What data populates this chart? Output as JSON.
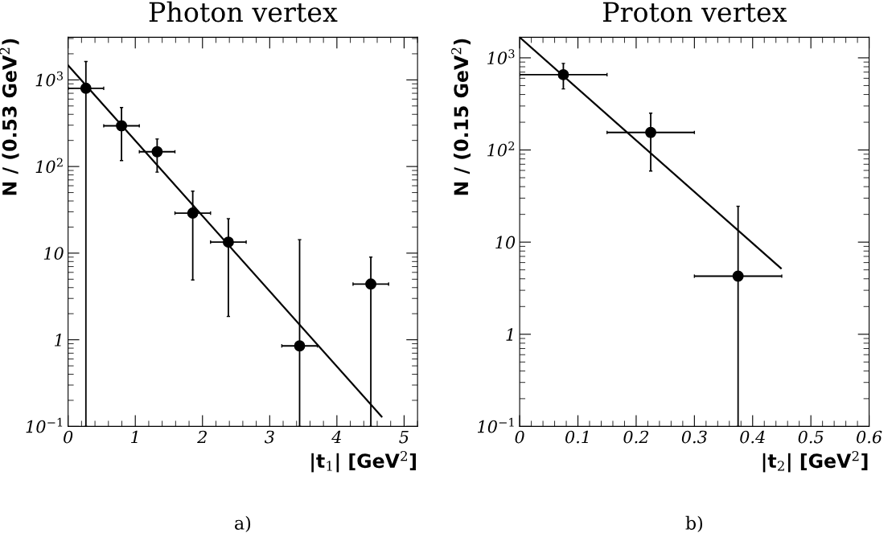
{
  "chart_data": [
    {
      "type": "scatter",
      "title": "Photon vertex",
      "xlabel": "|t$_{1}$| [GeV$^{2}$]",
      "ylabel": "N / (0.53 GeV$^{2}$)",
      "annotations": [
        "a)"
      ],
      "log": "y",
      "xlim": [
        0,
        5.2
      ],
      "xticks": [
        0,
        1,
        2,
        3,
        4,
        5
      ],
      "ylim": [
        0.1,
        3100
      ],
      "yticks": [
        {
          "value": 0.1,
          "label": "10$^{−1}$"
        },
        1,
        10,
        {
          "value": 100,
          "label": "10$^{2}$"
        },
        {
          "value": 1000,
          "label": "10$^{3}$"
        }
      ],
      "grid": false,
      "legend": false,
      "series": [
        {
          "color": "#000000",
          "marker": "circle",
          "x": [
            0.265,
            0.795,
            1.325,
            1.855,
            2.385,
            3.445,
            4.505
          ],
          "values": [
            800,
            295,
            148,
            29,
            13.4,
            0.85,
            4.4
          ],
          "errors": [
            [
              0.1,
              1630
            ],
            [
              117,
              480
            ],
            [
              86,
              208
            ],
            [
              4.9,
              52
            ],
            [
              1.86,
              25
            ],
            [
              0.1,
              14.3
            ],
            [
              0.1,
              9.0
            ]
          ],
          "xerrors": [
            0.265,
            0.265,
            0.265,
            0.265,
            0.265,
            0.265,
            0.265
          ]
        },
        {
          "type": "line",
          "color": "#000000",
          "line_style": "solid",
          "x": [
            0,
            4.665
          ],
          "values": [
            1470,
            0.13
          ]
        }
      ]
    },
    {
      "type": "scatter",
      "title": "Proton vertex",
      "xlabel": "|t$_{2}$| [GeV$^{2}$]",
      "ylabel": "N / (0.15 GeV$^{2}$)",
      "annotations": [
        "b)"
      ],
      "log": "y",
      "xlim": [
        0,
        0.6
      ],
      "xticks": [
        0,
        0.1,
        0.2,
        0.3,
        0.4,
        0.5,
        0.6
      ],
      "ylim": [
        0.1,
        1670
      ],
      "yticks": [
        {
          "value": 0.1,
          "label": "10$^{−1}$"
        },
        1,
        10,
        {
          "value": 100,
          "label": "10$^{2}$"
        },
        {
          "value": 1000,
          "label": "10$^{3}$"
        }
      ],
      "grid": false,
      "legend": false,
      "series": [
        {
          "color": "#000000",
          "marker": "circle",
          "x": [
            0.075,
            0.225,
            0.375
          ],
          "values": [
            656,
            155,
            4.27
          ],
          "errors": [
            [
              460,
              870
            ],
            [
              59,
              251
            ],
            [
              0.1,
              24.5
            ]
          ],
          "xerrors": [
            0.075,
            0.075,
            0.075
          ]
        },
        {
          "type": "line",
          "color": "#000000",
          "line_style": "solid",
          "x": [
            0,
            0.4485
          ],
          "values": [
            1670,
            5.2
          ]
        }
      ]
    }
  ]
}
